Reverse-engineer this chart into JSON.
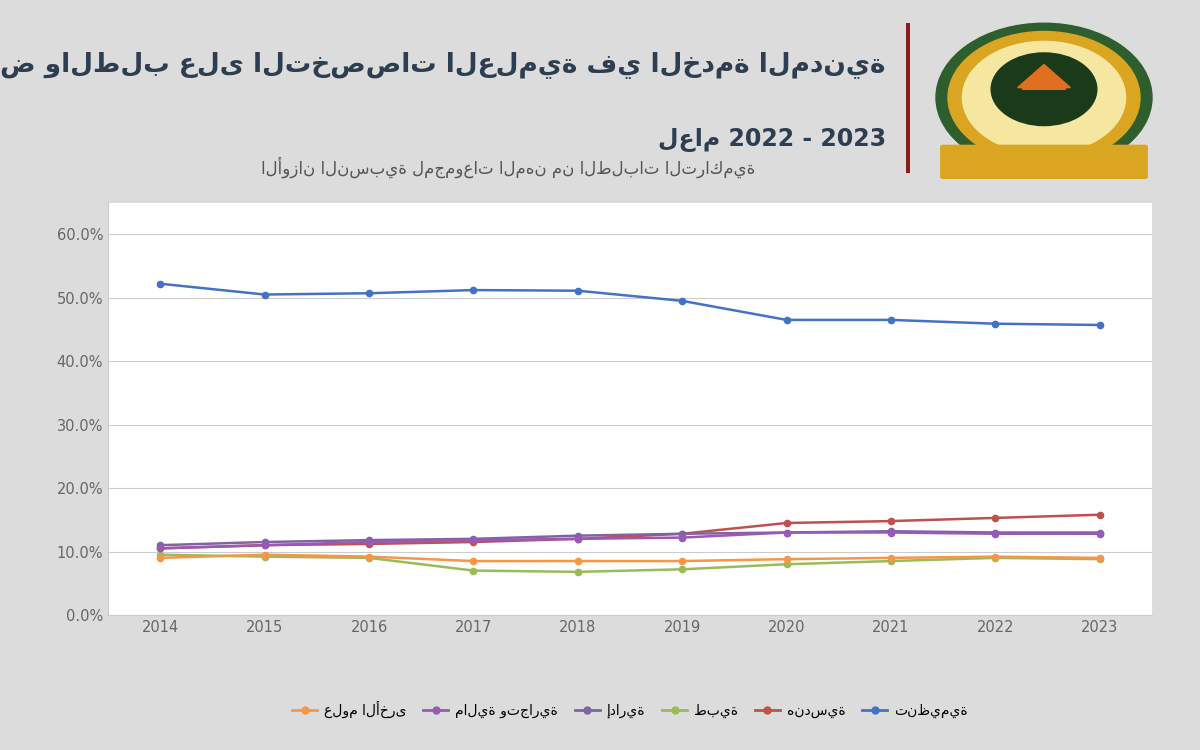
{
  "title_line1": "العرض والطلب على التخصصات العلمية في الخدمة المدنية",
  "title_line2": "لعام 2022 - 2023",
  "chart_title": "الأوزان النسبية لمجموعات المهن من الطلبات التراكمية",
  "years": [
    2014,
    2015,
    2016,
    2017,
    2018,
    2019,
    2020,
    2021,
    2022,
    2023
  ],
  "series": {
    "تنظيمية": {
      "values": [
        52.2,
        50.5,
        50.7,
        51.2,
        51.1,
        49.5,
        46.5,
        46.5,
        45.9,
        45.7
      ],
      "color": "#4472C4"
    },
    "هندسية": {
      "values": [
        10.5,
        11.0,
        11.2,
        11.5,
        12.0,
        12.8,
        14.5,
        14.8,
        15.3,
        15.8
      ],
      "color": "#C0504D"
    },
    "طبية": {
      "values": [
        9.5,
        9.2,
        9.0,
        7.0,
        6.8,
        7.2,
        8.0,
        8.5,
        9.0,
        8.8
      ],
      "color": "#9BBB59"
    },
    "إدارية": {
      "values": [
        11.0,
        11.5,
        11.8,
        12.0,
        12.5,
        12.8,
        13.0,
        13.2,
        13.0,
        13.0
      ],
      "color": "#8064A2"
    },
    "مالية وتجارية": {
      "values": [
        10.5,
        11.0,
        11.5,
        11.8,
        12.0,
        12.2,
        13.0,
        13.0,
        12.8,
        12.8
      ],
      "color": "#9B59B6"
    },
    "علوم الأخرى": {
      "values": [
        9.0,
        9.5,
        9.2,
        8.5,
        8.5,
        8.5,
        8.8,
        9.0,
        9.2,
        9.0
      ],
      "color": "#F79646"
    }
  },
  "ylim": [
    0,
    65
  ],
  "yticks": [
    0.0,
    10.0,
    20.0,
    30.0,
    40.0,
    50.0,
    60.0
  ],
  "bg_outer": "#DCDCDC",
  "bg_chart": "#FFFFFF",
  "bg_inner_box": "#F5F5F5",
  "separator_color": "#8B1A1A",
  "title_color": "#2C3E50",
  "grid_color": "#CCCCCC",
  "tick_color": "#666666"
}
